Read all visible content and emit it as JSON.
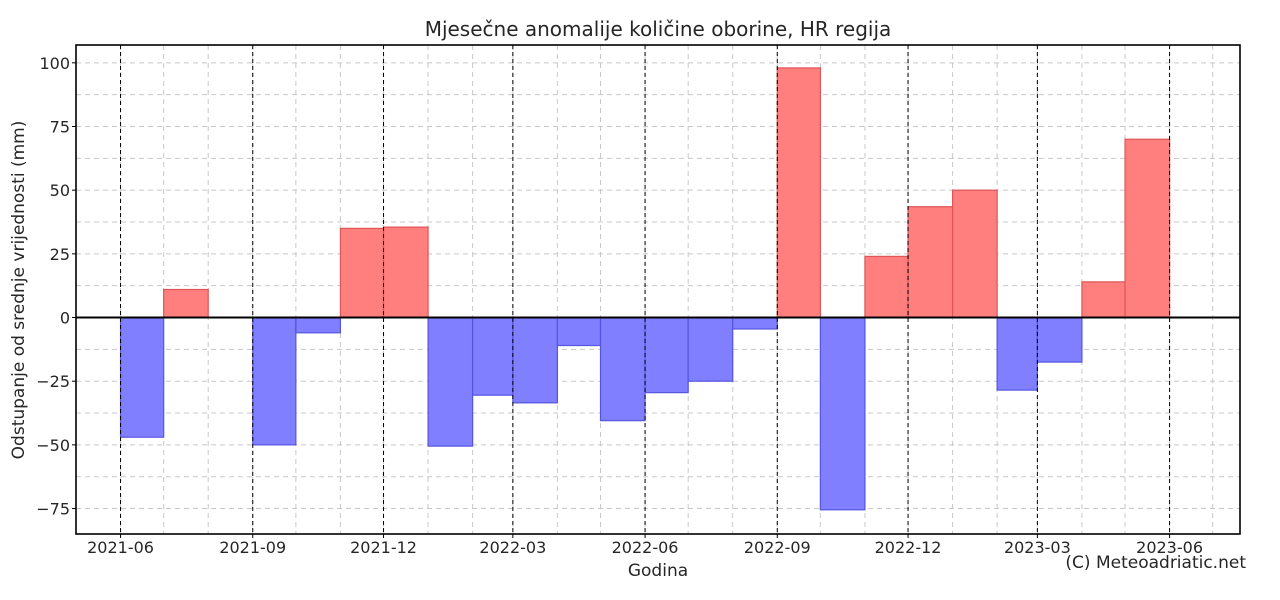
{
  "chart_data": {
    "type": "bar",
    "title": "Mjesečne anomalije količine oborine, HR regija",
    "xlabel": "Godina",
    "ylabel": "Odstupanje od srednje vrijednosti (mm)",
    "credit": "(C) Meteoadriatic.net",
    "ylim": [
      -85,
      107
    ],
    "yticks": [
      -75,
      -50,
      -25,
      0,
      25,
      50,
      75,
      100
    ],
    "ytick_labels": [
      "−75",
      "−50",
      "−25",
      "0",
      "25",
      "50",
      "75",
      "100"
    ],
    "xlim": [
      "2021-05-01",
      "2023-07-20"
    ],
    "xticks": [
      "2021-06",
      "2021-09",
      "2021-12",
      "2022-03",
      "2022-06",
      "2022-09",
      "2022-12",
      "2023-03",
      "2023-06"
    ],
    "categories": [
      "2021-06",
      "2021-07",
      "2021-08",
      "2021-09",
      "2021-10",
      "2021-11",
      "2021-12",
      "2022-01",
      "2022-02",
      "2022-03",
      "2022-04",
      "2022-05",
      "2022-06",
      "2022-07",
      "2022-08",
      "2022-09",
      "2022-10",
      "2022-11",
      "2022-12",
      "2023-01",
      "2023-02",
      "2023-03",
      "2023-04",
      "2023-05"
    ],
    "values": [
      -47,
      11,
      0,
      -50,
      -6,
      35,
      35.5,
      -50.5,
      -30.5,
      -33.5,
      -11,
      -40.5,
      -29.5,
      -25,
      -4.5,
      98,
      -75.5,
      24,
      43.5,
      50,
      -28.5,
      -17.5,
      14,
      70
    ],
    "colors": {
      "positive": "#ff7f7f",
      "positive_edge": "#e05555",
      "negative": "#7f7fff",
      "negative_edge": "#5555e0"
    },
    "grid": true,
    "legend": "none"
  }
}
